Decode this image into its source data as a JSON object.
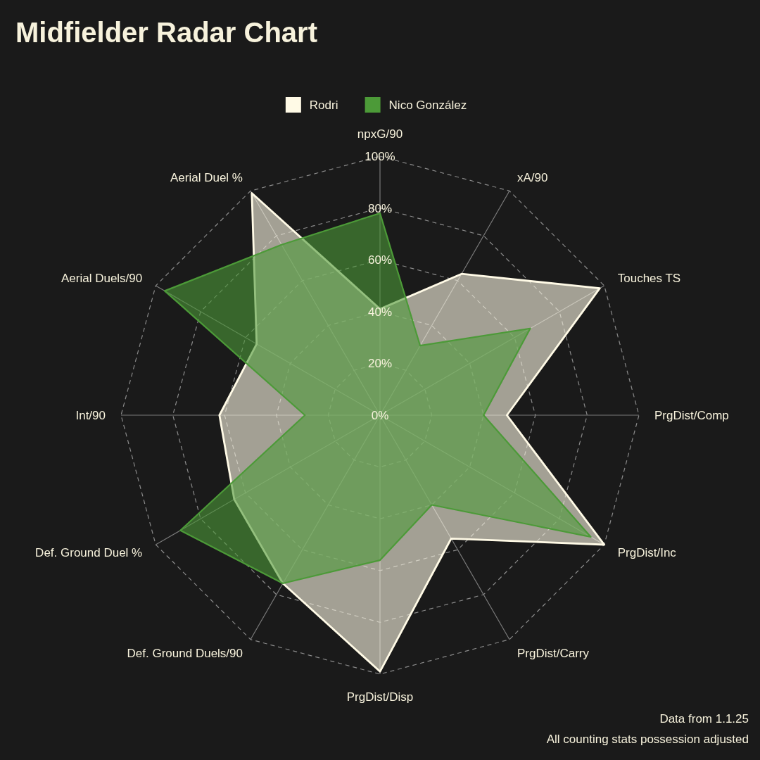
{
  "chart_data": {
    "type": "radar",
    "title": "Midfielder Radar Chart",
    "categories": [
      "npxG/90",
      "xA/90",
      "Touches TS",
      "PrgDist/Comp",
      "PrgDist/Inc",
      "PrgDist/Carry",
      "PrgDist/Disp",
      "Def. Ground Duels/90",
      "Def. Ground Duel %",
      "Int/90",
      "Aerial Duels/90",
      "Aerial Duel %"
    ],
    "series": [
      {
        "name": "Rodri",
        "color": "#fffae6",
        "values": [
          41,
          63,
          98,
          49,
          100,
          55,
          99,
          75,
          65,
          62,
          55,
          99
        ]
      },
      {
        "name": "Nico González",
        "color": "#4c9a38",
        "values": [
          78,
          31,
          67,
          40,
          94,
          40,
          56,
          75,
          89,
          29,
          96,
          76
        ]
      }
    ],
    "ylim": [
      0,
      100
    ],
    "yticks": [
      {
        "value": 0,
        "label": "0%"
      },
      {
        "value": 20,
        "label": "20%"
      },
      {
        "value": 40,
        "label": "40%"
      },
      {
        "value": 60,
        "label": "60%"
      },
      {
        "value": 80,
        "label": "80%"
      },
      {
        "value": 100,
        "label": "100%"
      }
    ],
    "grid": true,
    "legend": "top",
    "annotations": [
      "Data from 1.1.25",
      "All counting stats possession adjusted"
    ]
  }
}
